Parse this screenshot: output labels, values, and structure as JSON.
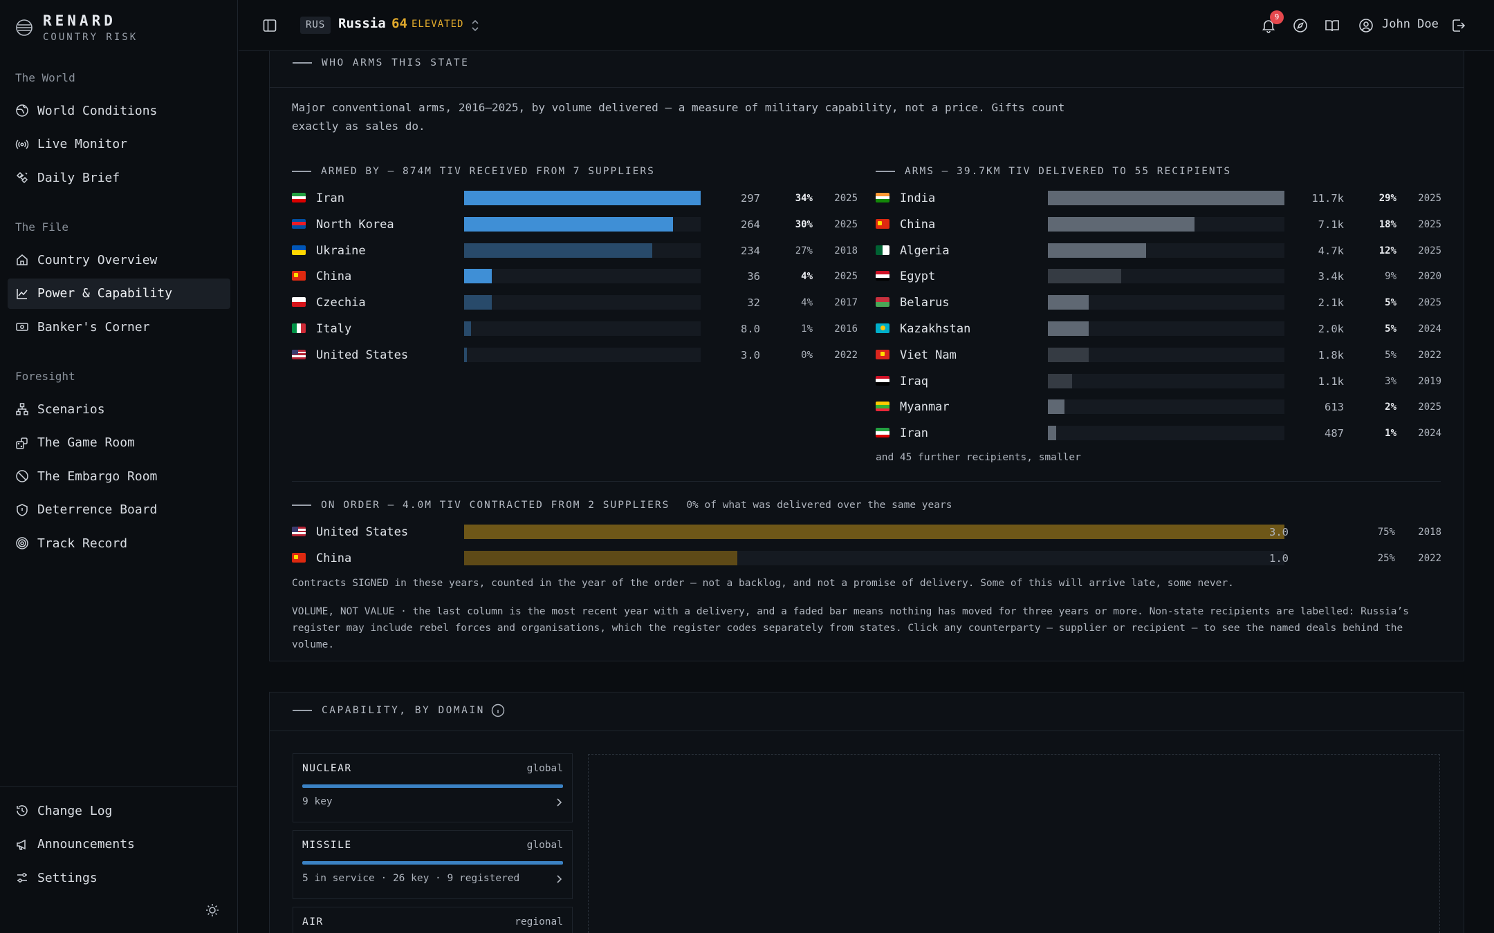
{
  "brand": {
    "name": "RENARD",
    "subtitle": "COUNTRY RISK"
  },
  "sidebar": {
    "groups": [
      {
        "heading": "The World",
        "items": [
          {
            "label": "World Conditions",
            "icon": "globe-icon"
          },
          {
            "label": "Live Monitor",
            "icon": "broadcast-icon"
          },
          {
            "label": "Daily Brief",
            "icon": "satellite-icon"
          }
        ]
      },
      {
        "heading": "The File",
        "items": [
          {
            "label": "Country Overview",
            "icon": "home-icon"
          },
          {
            "label": "Power & Capability",
            "icon": "line-chart-icon",
            "active": true
          },
          {
            "label": "Banker's Corner",
            "icon": "banknote-icon"
          }
        ]
      },
      {
        "heading": "Foresight",
        "items": [
          {
            "label": "Scenarios",
            "icon": "network-icon"
          },
          {
            "label": "The Game Room",
            "icon": "dice-icon"
          },
          {
            "label": "The Embargo Room",
            "icon": "ban-icon"
          },
          {
            "label": "Deterrence Board",
            "icon": "shield-icon"
          },
          {
            "label": "Track Record",
            "icon": "target-icon"
          }
        ]
      }
    ],
    "bottom": [
      {
        "label": "Change Log",
        "icon": "history-icon"
      },
      {
        "label": "Announcements",
        "icon": "megaphone-icon"
      },
      {
        "label": "Settings",
        "icon": "sliders-icon"
      }
    ]
  },
  "topbar": {
    "iso": "RUS",
    "country": "Russia",
    "score": "64",
    "level": "ELEVATED",
    "notifications": "9",
    "user": "John Doe"
  },
  "arms": {
    "title": "WHO ARMS THIS STATE",
    "intro": "Major conventional arms, 2016–2025, by volume delivered — a measure of military capability, not a price. Gifts count exactly as sales do.",
    "suppliers_title": "ARMED BY — 874M TIV RECEIVED FROM 7 SUPPLIERS",
    "suppliers": [
      {
        "name": "Iran",
        "flag": "ir",
        "value": "297",
        "share": 34,
        "pct": "34%",
        "year": "2025",
        "recent": true
      },
      {
        "name": "North Korea",
        "flag": "kp",
        "value": "264",
        "share": 30,
        "pct": "30%",
        "year": "2025",
        "recent": true
      },
      {
        "name": "Ukraine",
        "flag": "ua",
        "value": "234",
        "share": 27,
        "pct": "27%",
        "year": "2018",
        "recent": false
      },
      {
        "name": "China",
        "flag": "cn",
        "value": "36",
        "share": 4,
        "pct": "4%",
        "year": "2025",
        "recent": true
      },
      {
        "name": "Czechia",
        "flag": "cz",
        "value": "32",
        "share": 4,
        "pct": "4%",
        "year": "2017",
        "recent": false
      },
      {
        "name": "Italy",
        "flag": "it",
        "value": "8.0",
        "share": 1,
        "pct": "1%",
        "year": "2016",
        "recent": false
      },
      {
        "name": "United States",
        "flag": "us",
        "value": "3.0",
        "share": 0.35,
        "pct": "0%",
        "year": "2022",
        "recent": false
      }
    ],
    "recipients_title": "ARMS — 39.7KM TIV DELIVERED TO 55 RECIPIENTS",
    "recipients": [
      {
        "name": "India",
        "flag": "in",
        "value": "11.7k",
        "share": 29,
        "pct": "29%",
        "year": "2025",
        "recent": true
      },
      {
        "name": "China",
        "flag": "cn",
        "value": "7.1k",
        "share": 18,
        "pct": "18%",
        "year": "2025",
        "recent": true
      },
      {
        "name": "Algeria",
        "flag": "dz",
        "value": "4.7k",
        "share": 12,
        "pct": "12%",
        "year": "2025",
        "recent": true
      },
      {
        "name": "Egypt",
        "flag": "eg",
        "value": "3.4k",
        "share": 9,
        "pct": "9%",
        "year": "2020",
        "recent": false
      },
      {
        "name": "Belarus",
        "flag": "by",
        "value": "2.1k",
        "share": 5,
        "pct": "5%",
        "year": "2025",
        "recent": true
      },
      {
        "name": "Kazakhstan",
        "flag": "kz",
        "value": "2.0k",
        "share": 5,
        "pct": "5%",
        "year": "2024",
        "recent": true
      },
      {
        "name": "Viet Nam",
        "flag": "vn",
        "value": "1.8k",
        "share": 5,
        "pct": "5%",
        "year": "2022",
        "recent": false
      },
      {
        "name": "Iraq",
        "flag": "iq",
        "value": "1.1k",
        "share": 3,
        "pct": "3%",
        "year": "2019",
        "recent": false
      },
      {
        "name": "Myanmar",
        "flag": "mm",
        "value": "613",
        "share": 2,
        "pct": "2%",
        "year": "2025",
        "recent": true
      },
      {
        "name": "Iran",
        "flag": "ir",
        "value": "487",
        "share": 1,
        "pct": "1%",
        "year": "2024",
        "recent": true
      }
    ],
    "recipients_more": "and 45 further recipients, smaller",
    "order_title": "ON ORDER — 4.0M TIV CONTRACTED FROM 2 SUPPLIERS",
    "order_sub": "0% of what was delivered over the same years",
    "orders": [
      {
        "name": "United States",
        "flag": "us",
        "value": "3.0",
        "share": 75,
        "pct": "75%",
        "year": "2018"
      },
      {
        "name": "China",
        "flag": "cn",
        "value": "1.0",
        "share": 25,
        "pct": "25%",
        "year": "2022"
      }
    ],
    "order_note": "Contracts SIGNED in these years, counted in the year of the order — not a backlog, and not a promise of delivery. Some of this will arrive late, some never.",
    "footnote": "VOLUME, NOT VALUE · the last column is the most recent year with a delivery, and a faded bar means nothing has moved for three years or more. Non-state recipients are labelled: Russia’s register may include rebel forces and organisations, which the register codes separately from states. Click any counterparty — supplier or recipient — to see the named deals behind the volume."
  },
  "capability": {
    "title": "CAPABILITY, BY DOMAIN",
    "cards": [
      {
        "name": "NUCLEAR",
        "scope": "global",
        "detail": "9 key"
      },
      {
        "name": "MISSILE",
        "scope": "global",
        "detail": "5 in service · 26 key · 9 registered"
      },
      {
        "name": "AIR",
        "scope": "regional",
        "detail": ""
      }
    ]
  },
  "colors": {
    "supplier_bar": "#3f8fd6",
    "supplier_bar_faded": "#284a6a",
    "recipient_bar": "#5f6873",
    "recipient_bar_faded": "#353b43",
    "order_bar": "#6e5718",
    "order_bar_2": "#5e4a17",
    "accent_amber": "#e0a92c",
    "alert_red": "#e5484d"
  }
}
